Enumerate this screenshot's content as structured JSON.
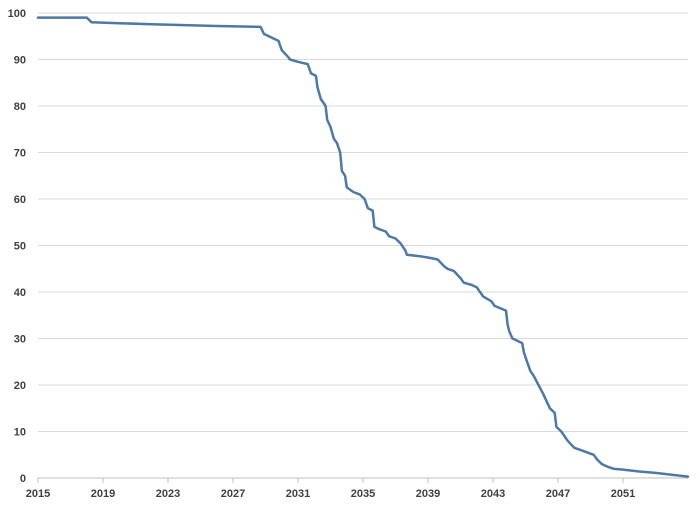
{
  "chart_data": {
    "type": "line",
    "title": "",
    "xlabel": "",
    "ylabel": "",
    "xlim": [
      2015,
      2055
    ],
    "ylim": [
      0,
      100
    ],
    "x_ticks": [
      2015,
      2019,
      2023,
      2027,
      2031,
      2035,
      2039,
      2043,
      2047,
      2051
    ],
    "y_ticks": [
      0,
      10,
      20,
      30,
      40,
      50,
      60,
      70,
      80,
      90,
      100
    ],
    "grid": {
      "horizontal": true,
      "vertical": false
    },
    "legend": "none",
    "series": [
      {
        "color": "#4e79a7",
        "points": [
          [
            2015,
            99
          ],
          [
            2016,
            99
          ],
          [
            2017,
            99
          ],
          [
            2018,
            99
          ],
          [
            2018.3,
            98
          ],
          [
            2020,
            97.8
          ],
          [
            2022,
            97.6
          ],
          [
            2024,
            97.4
          ],
          [
            2026,
            97.2
          ],
          [
            2028.7,
            97
          ],
          [
            2028.9,
            95.5
          ],
          [
            2029.2,
            95
          ],
          [
            2029.8,
            94
          ],
          [
            2030,
            92
          ],
          [
            2030.4,
            90.5
          ],
          [
            2030.5,
            90
          ],
          [
            2031,
            89.5
          ],
          [
            2031.6,
            89
          ],
          [
            2031.8,
            87
          ],
          [
            2032.1,
            86.5
          ],
          [
            2032.2,
            84
          ],
          [
            2032.4,
            81.5
          ],
          [
            2032.7,
            80
          ],
          [
            2032.8,
            77
          ],
          [
            2033,
            75.5
          ],
          [
            2033.2,
            73
          ],
          [
            2033.4,
            72
          ],
          [
            2033.6,
            70
          ],
          [
            2033.7,
            66
          ],
          [
            2033.9,
            65
          ],
          [
            2034,
            62.5
          ],
          [
            2034.4,
            61.5
          ],
          [
            2034.8,
            61
          ],
          [
            2035.1,
            60
          ],
          [
            2035.3,
            58
          ],
          [
            2035.6,
            57.5
          ],
          [
            2035.7,
            54
          ],
          [
            2036,
            53.5
          ],
          [
            2036.4,
            53
          ],
          [
            2036.6,
            52
          ],
          [
            2037,
            51.5
          ],
          [
            2037.3,
            50.5
          ],
          [
            2037.6,
            49
          ],
          [
            2037.7,
            48
          ],
          [
            2038.5,
            47.7
          ],
          [
            2039.2,
            47.3
          ],
          [
            2039.6,
            47
          ],
          [
            2040,
            45.5
          ],
          [
            2040.2,
            45
          ],
          [
            2040.6,
            44.5
          ],
          [
            2041,
            43
          ],
          [
            2041.2,
            42
          ],
          [
            2041.7,
            41.5
          ],
          [
            2042,
            41
          ],
          [
            2042.2,
            40
          ],
          [
            2042.4,
            39
          ],
          [
            2042.9,
            38
          ],
          [
            2043.1,
            37
          ],
          [
            2043.8,
            36
          ],
          [
            2043.9,
            33
          ],
          [
            2044,
            31.5
          ],
          [
            2044.2,
            30
          ],
          [
            2044.8,
            29
          ],
          [
            2044.9,
            27
          ],
          [
            2045.1,
            25
          ],
          [
            2045.3,
            23
          ],
          [
            2045.5,
            22
          ],
          [
            2045.8,
            20
          ],
          [
            2046.1,
            18
          ],
          [
            2046.3,
            16.5
          ],
          [
            2046.5,
            15
          ],
          [
            2046.8,
            14
          ],
          [
            2046.9,
            11
          ],
          [
            2047.2,
            10
          ],
          [
            2047.6,
            8
          ],
          [
            2048,
            6.5
          ],
          [
            2048.4,
            6
          ],
          [
            2049.2,
            5
          ],
          [
            2049.4,
            4
          ],
          [
            2049.7,
            3
          ],
          [
            2050,
            2.5
          ],
          [
            2050.4,
            2
          ],
          [
            2051,
            1.8
          ],
          [
            2052,
            1.4
          ],
          [
            2053,
            1.1
          ],
          [
            2054,
            0.7
          ],
          [
            2055,
            0.3
          ]
        ]
      }
    ]
  }
}
